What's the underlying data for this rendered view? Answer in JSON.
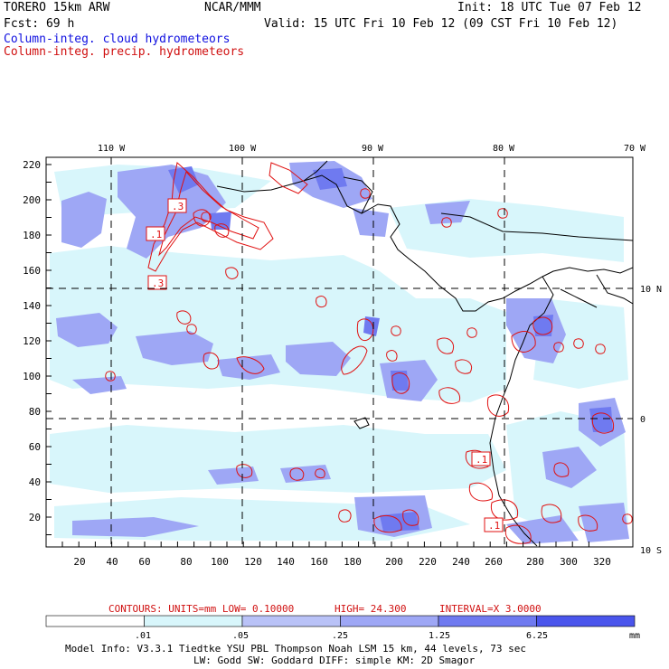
{
  "header": {
    "model": "TORERO  15km ARW",
    "org": "NCAR/MMM",
    "init": "Init: 18 UTC Tue 07 Feb 12",
    "fcst": "Fcst:   69 h",
    "valid": "Valid: 15 UTC Fri 10 Feb 12 (09 CST Fri 10 Feb 12)",
    "legend_cloud": "Column-integ. cloud hydrometeors",
    "legend_precip": "Column-integ. precip. hydrometeors"
  },
  "map": {
    "lon_labels": [
      "110 W",
      "100 W",
      "90 W",
      "80 W",
      "70 W"
    ],
    "lat_labels": [
      "10 N",
      "0",
      "10 S"
    ],
    "y_ticks": [
      "220",
      "200",
      "180",
      "160",
      "140",
      "120",
      "100",
      "80",
      "60",
      "40",
      "20"
    ],
    "x_ticks": [
      "20",
      "40",
      "60",
      "80",
      "100",
      "120",
      "140",
      "160",
      "180",
      "200",
      "220",
      "240",
      "260",
      "280",
      "300",
      "320"
    ],
    "contour_labels": [
      ".3",
      ".1",
      ".3",
      ".1",
      ".1"
    ]
  },
  "contour_info": {
    "units": "CONTOURS:  UNITS=mm  LOW= 0.10000",
    "high": "HIGH=  24.300",
    "interval": "INTERVAL=X  3.0000"
  },
  "colorbar": {
    "labels": [
      ".01",
      ".05",
      ".25",
      "1.25",
      "6.25",
      "mm"
    ],
    "colors": [
      "#ffffff",
      "#d8f6fb",
      "#b9c2f7",
      "#9ea7f5",
      "#6f7af0",
      "#4a55ec",
      "#2a32e0"
    ]
  },
  "footer": {
    "line1": "Model Info: V3.3.1   Tiedtke YSU PBL  Thompson    Noah LSM  15 km,   44 levels,   73 sec",
    "line2": "LW: Godd SW: Goddard DIFF: simple KM: 2D Smagor"
  },
  "colors": {
    "precip_contour": "#e01010",
    "cloud_fill": "#9ea7f5",
    "cloud_light": "#d8f6fb",
    "cloud_dark": "#6f7af0"
  }
}
